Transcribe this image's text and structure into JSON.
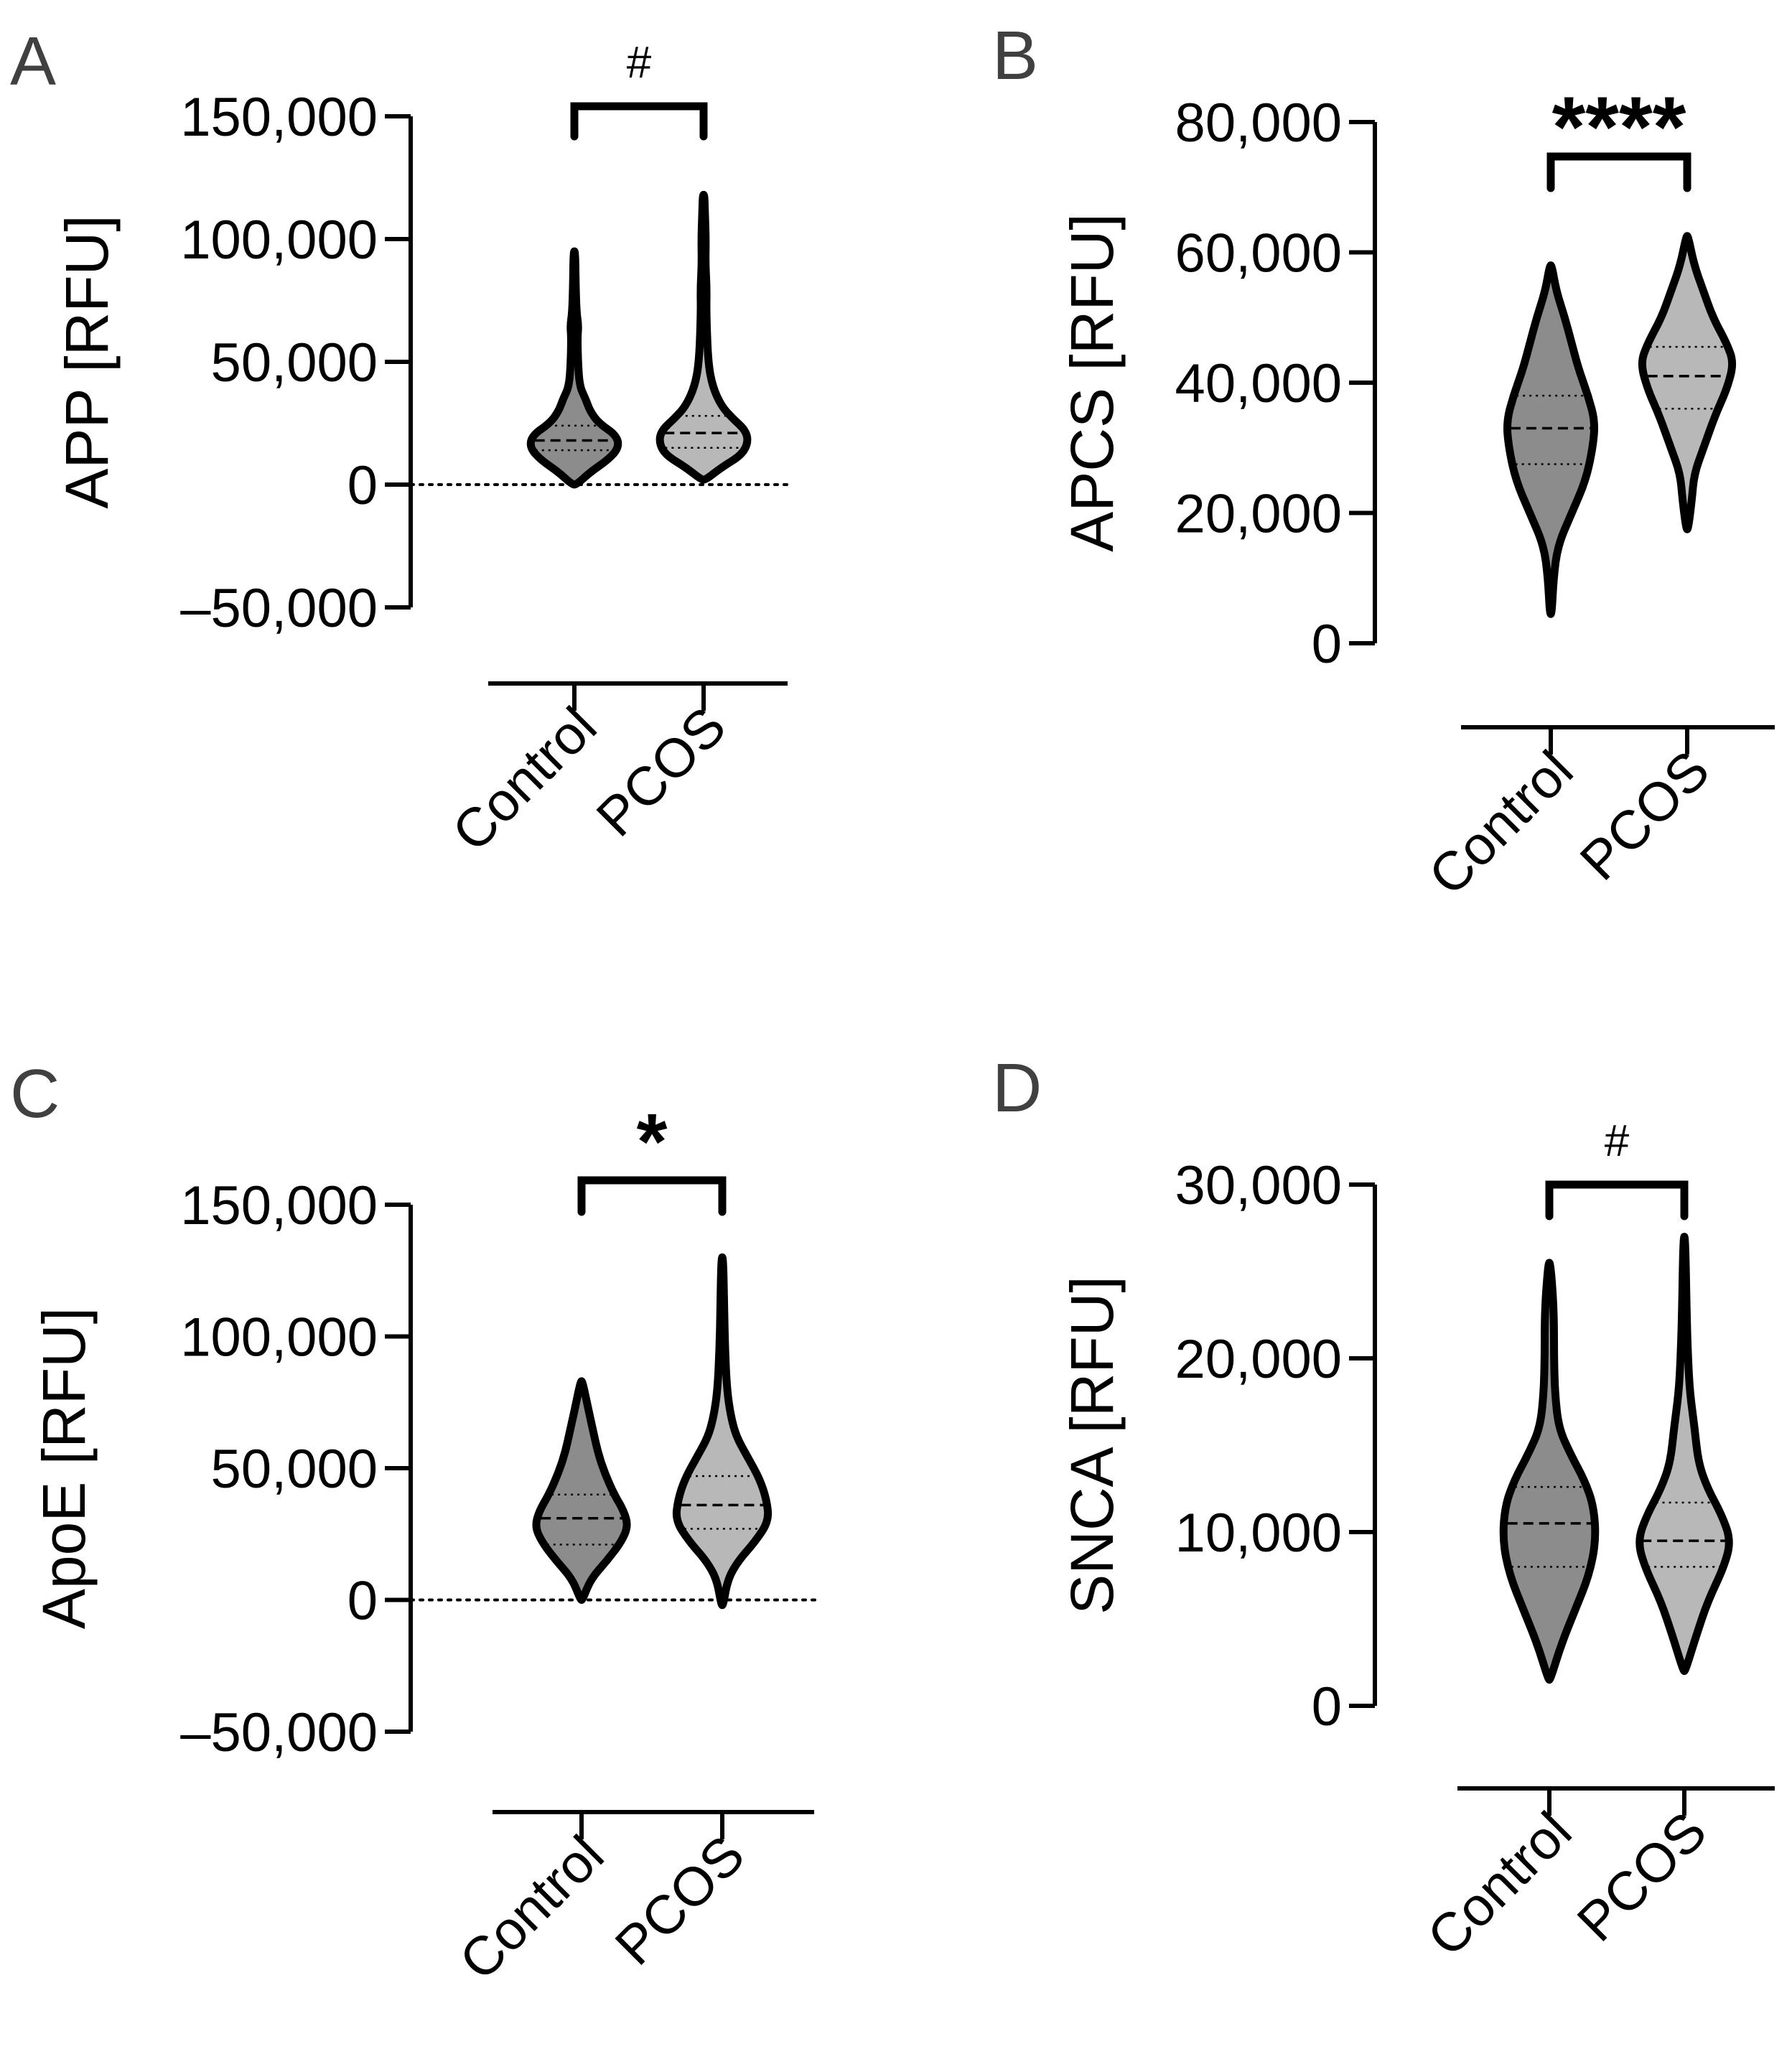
{
  "chart_data": [
    {
      "panel": "A",
      "type": "violin",
      "ylabel": "APP [RFU]",
      "categories": [
        "Control",
        "PCOS"
      ],
      "yticks": [
        "150,000",
        "100,000",
        "50,000",
        "0",
        "–50,000"
      ],
      "ylim": [
        -50000,
        150000
      ],
      "zero_line": true,
      "significance": "#",
      "series": [
        {
          "name": "Control",
          "fill": "#8c8c8c",
          "min": 0,
          "max": 95000,
          "q1": 14000,
          "median": 18000,
          "q3": 24000,
          "profile": [
            [
              0,
              0.05
            ],
            [
              5000,
              0.35
            ],
            [
              10000,
              0.75
            ],
            [
              15000,
              1.0
            ],
            [
              20000,
              0.95
            ],
            [
              25000,
              0.55
            ],
            [
              30000,
              0.35
            ],
            [
              35000,
              0.25
            ],
            [
              40000,
              0.12
            ],
            [
              50000,
              0.08
            ],
            [
              60000,
              0.07
            ],
            [
              65000,
              0.09
            ],
            [
              70000,
              0.05
            ],
            [
              80000,
              0.03
            ],
            [
              95000,
              0.02
            ]
          ]
        },
        {
          "name": "PCOS",
          "fill": "#b8b8b8",
          "min": 2000,
          "max": 118000,
          "q1": 15000,
          "median": 21000,
          "q3": 28000,
          "profile": [
            [
              2000,
              0.05
            ],
            [
              7000,
              0.4
            ],
            [
              12000,
              0.85
            ],
            [
              17000,
              1.0
            ],
            [
              22000,
              0.95
            ],
            [
              27000,
              0.65
            ],
            [
              32000,
              0.4
            ],
            [
              40000,
              0.2
            ],
            [
              50000,
              0.1
            ],
            [
              70000,
              0.06
            ],
            [
              80000,
              0.07
            ],
            [
              90000,
              0.04
            ],
            [
              100000,
              0.05
            ],
            [
              110000,
              0.03
            ],
            [
              118000,
              0.02
            ]
          ]
        }
      ]
    },
    {
      "panel": "B",
      "type": "violin",
      "ylabel": "APCS [RFU]",
      "categories": [
        "Control",
        "PCOS"
      ],
      "yticks": [
        "80,000",
        "60,000",
        "40,000",
        "20,000",
        "0"
      ],
      "ylim": [
        0,
        80000
      ],
      "zero_line": false,
      "significance": "****",
      "series": [
        {
          "name": "Control",
          "fill": "#8c8c8c",
          "min": 4500,
          "max": 58000,
          "q1": 27500,
          "median": 33000,
          "q3": 38000,
          "profile": [
            [
              4500,
              0.02
            ],
            [
              10000,
              0.06
            ],
            [
              15000,
              0.15
            ],
            [
              20000,
              0.45
            ],
            [
              25000,
              0.75
            ],
            [
              30000,
              0.9
            ],
            [
              34000,
              0.95
            ],
            [
              38000,
              0.8
            ],
            [
              42000,
              0.6
            ],
            [
              46000,
              0.45
            ],
            [
              50000,
              0.3
            ],
            [
              54000,
              0.12
            ],
            [
              58000,
              0.02
            ]
          ]
        },
        {
          "name": "PCOS",
          "fill": "#b8b8b8",
          "min": 17500,
          "max": 62500,
          "q1": 36000,
          "median": 41000,
          "q3": 45500,
          "profile": [
            [
              17500,
              0.02
            ],
            [
              22000,
              0.1
            ],
            [
              26000,
              0.15
            ],
            [
              30000,
              0.35
            ],
            [
              35000,
              0.6
            ],
            [
              39000,
              0.85
            ],
            [
              43000,
              1.0
            ],
            [
              46000,
              0.85
            ],
            [
              50000,
              0.55
            ],
            [
              54000,
              0.35
            ],
            [
              58000,
              0.15
            ],
            [
              62500,
              0.02
            ]
          ]
        }
      ]
    },
    {
      "panel": "C",
      "type": "violin",
      "ylabel": "ApoE [RFU]",
      "categories": [
        "Control",
        "PCOS"
      ],
      "yticks": [
        "150,000",
        "100,000",
        "50,000",
        "0",
        "–50,000"
      ],
      "ylim": [
        -50000,
        150000
      ],
      "zero_line": true,
      "significance": "*",
      "series": [
        {
          "name": "Control",
          "fill": "#8c8c8c",
          "min": 0,
          "max": 83000,
          "q1": 21000,
          "median": 31000,
          "q3": 40000,
          "profile": [
            [
              0,
              0.02
            ],
            [
              8000,
              0.2
            ],
            [
              15000,
              0.55
            ],
            [
              22000,
              0.85
            ],
            [
              28000,
              1.0
            ],
            [
              34000,
              0.9
            ],
            [
              40000,
              0.7
            ],
            [
              48000,
              0.5
            ],
            [
              56000,
              0.35
            ],
            [
              64000,
              0.25
            ],
            [
              72000,
              0.15
            ],
            [
              83000,
              0.02
            ]
          ]
        },
        {
          "name": "PCOS",
          "fill": "#b8b8b8",
          "min": -2000,
          "max": 130000,
          "q1": 27000,
          "median": 36000,
          "q3": 47000,
          "profile": [
            [
              -2000,
              0.02
            ],
            [
              8000,
              0.12
            ],
            [
              15000,
              0.35
            ],
            [
              22000,
              0.7
            ],
            [
              30000,
              1.0
            ],
            [
              38000,
              0.95
            ],
            [
              46000,
              0.8
            ],
            [
              54000,
              0.55
            ],
            [
              62000,
              0.3
            ],
            [
              70000,
              0.18
            ],
            [
              80000,
              0.1
            ],
            [
              95000,
              0.06
            ],
            [
              110000,
              0.04
            ],
            [
              130000,
              0.02
            ]
          ]
        }
      ]
    },
    {
      "panel": "D",
      "type": "violin",
      "ylabel": "SNCA [RFU]",
      "categories": [
        "Control",
        "PCOS"
      ],
      "yticks": [
        "30,000",
        "20,000",
        "10,000",
        "0"
      ],
      "ylim": [
        0,
        30000
      ],
      "zero_line": false,
      "significance": "#",
      "series": [
        {
          "name": "Control",
          "fill": "#8c8c8c",
          "min": 1500,
          "max": 25500,
          "q1": 8000,
          "median": 10500,
          "q3": 12600,
          "profile": [
            [
              1500,
              0.02
            ],
            [
              3500,
              0.25
            ],
            [
              5500,
              0.55
            ],
            [
              7500,
              0.85
            ],
            [
              9500,
              1.0
            ],
            [
              11500,
              0.95
            ],
            [
              13000,
              0.75
            ],
            [
              14500,
              0.45
            ],
            [
              16000,
              0.2
            ],
            [
              18000,
              0.12
            ],
            [
              20000,
              0.1
            ],
            [
              22000,
              0.1
            ],
            [
              23500,
              0.08
            ],
            [
              25500,
              0.02
            ]
          ]
        },
        {
          "name": "PCOS",
          "fill": "#b8b8b8",
          "min": 2000,
          "max": 27000,
          "q1": 8000,
          "median": 9500,
          "q3": 11700,
          "profile": [
            [
              2000,
              0.02
            ],
            [
              4000,
              0.25
            ],
            [
              6000,
              0.5
            ],
            [
              8000,
              0.85
            ],
            [
              9500,
              1.0
            ],
            [
              11000,
              0.8
            ],
            [
              12500,
              0.5
            ],
            [
              14000,
              0.3
            ],
            [
              16000,
              0.22
            ],
            [
              18000,
              0.12
            ],
            [
              20000,
              0.08
            ],
            [
              22500,
              0.05
            ],
            [
              27000,
              0.02
            ]
          ]
        }
      ]
    }
  ]
}
